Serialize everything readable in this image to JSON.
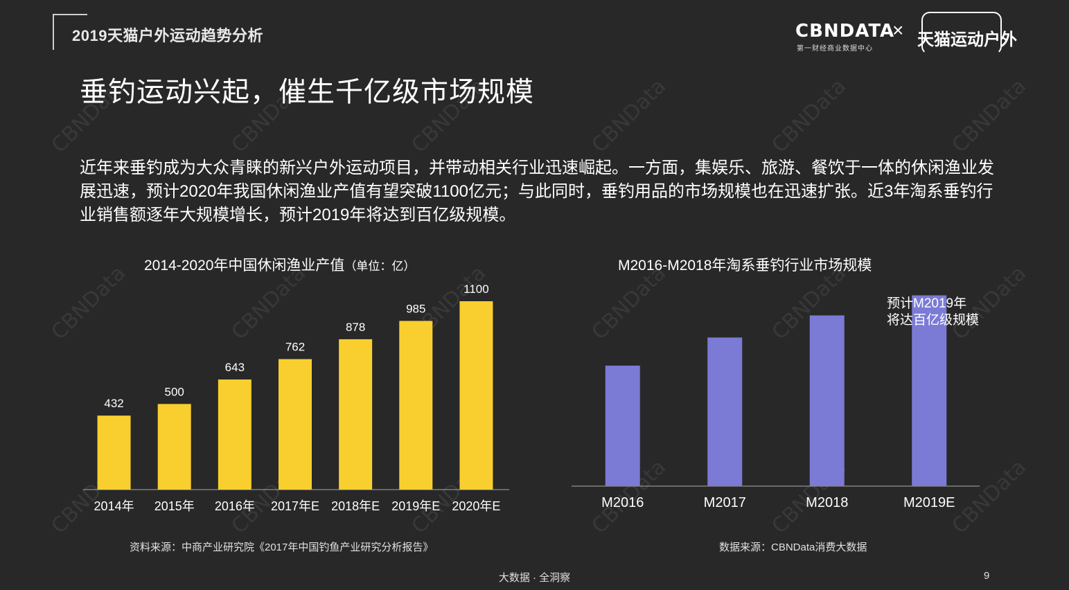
{
  "header": {
    "report_title": "2019天猫户外运动趋势分析",
    "logo_cbn": "CBNDATA",
    "logo_cbn_sub": "第一财经商业数据中心",
    "logo_x": "×",
    "logo_tmall": "天猫运动户外"
  },
  "main_title": "垂钓运动兴起，催生千亿级市场规模",
  "paragraph": "近年来垂钓成为大众青睐的新兴户外运动项目，并带动相关行业迅速崛起。一方面，集娱乐、旅游、餐饮于一体的休闲渔业发展迅速，预计2020年我国休闲渔业产值有望突破1100亿元；与此同时，垂钓用品的市场规模也在迅速扩张。近3年淘系垂钓行业销售额逐年大规模增长，预计2019年将达到百亿级规模。",
  "watermark_text": "CBNData",
  "chart_data": [
    {
      "type": "bar",
      "title": "2014-2020年中国休闲渔业产值",
      "title_unit": "（单位：亿）",
      "categories": [
        "2014年",
        "2015年",
        "2016年",
        "2017年E",
        "2018年E",
        "2019年E",
        "2020年E"
      ],
      "values": [
        432,
        500,
        643,
        762,
        878,
        985,
        1100
      ],
      "ylim": [
        0,
        1100
      ],
      "color": "#F8CF2F",
      "data_labels": true,
      "source": "资料来源：中商产业研究院《2017年中国钓鱼产业研究分析报告》"
    },
    {
      "type": "bar",
      "title": "M2016-M2018年淘系垂钓行业市场规模",
      "categories": [
        "M2016",
        "M2017",
        "M2018",
        "M2019E"
      ],
      "values": [
        0.6,
        0.74,
        0.85,
        0.95
      ],
      "ylim": [
        0,
        1
      ],
      "color": "#7B7BD6",
      "data_labels": false,
      "annotation": [
        "预计M2019年",
        "将达百亿级规模"
      ],
      "source": "数据来源：CBNData消费大数据"
    }
  ],
  "footer": "大数据 · 全洞察",
  "page_number": "9"
}
